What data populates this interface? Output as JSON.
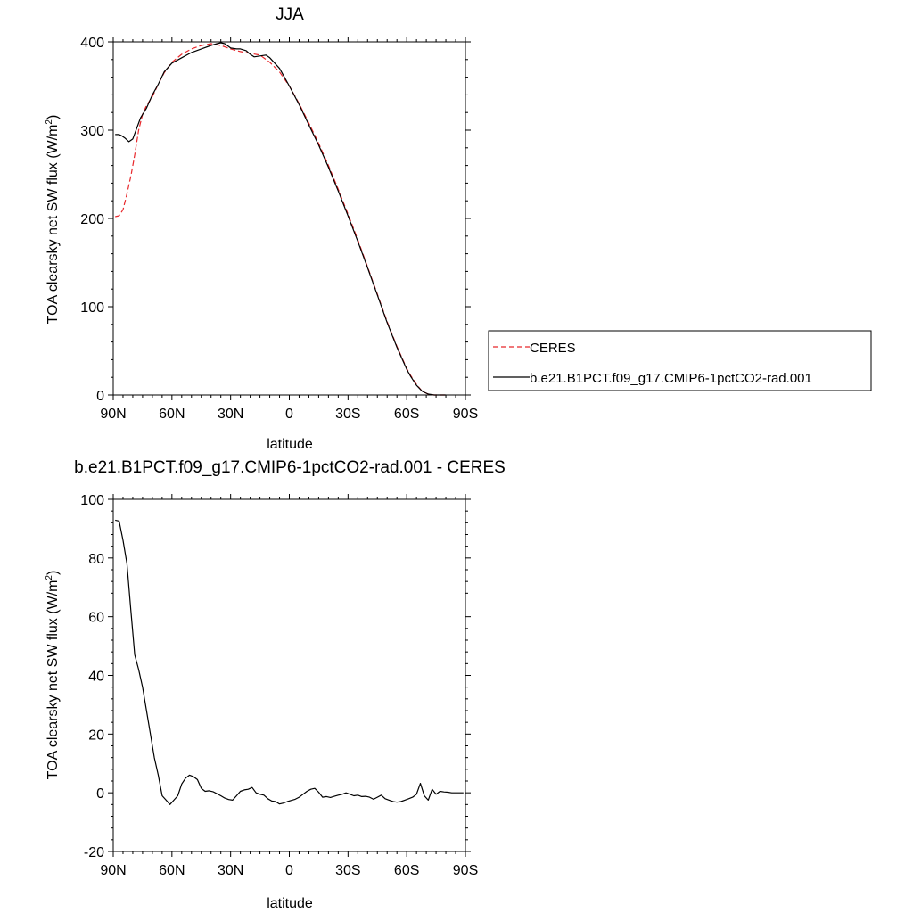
{
  "chart_data": [
    {
      "type": "line",
      "title": "JJA",
      "xlabel": "latitude",
      "ylabel_prefix": "TOA clearsky net SW flux (W/m",
      "ylabel_sup": "2",
      "ylabel_suffix": ")",
      "xlim": [
        90,
        -90
      ],
      "ylim": [
        0,
        400
      ],
      "xticks": [
        90,
        60,
        30,
        0,
        -30,
        -60,
        -90
      ],
      "xtick_labels": [
        "90N",
        "60N",
        "30N",
        "0",
        "30S",
        "60S",
        "90S"
      ],
      "yticks": [
        0,
        100,
        200,
        300,
        400
      ],
      "ytick_labels": [
        "0",
        "100",
        "200",
        "300",
        "400"
      ],
      "grid": false,
      "legend_position": "right",
      "series": [
        {
          "name": "CERES",
          "color": "#e8272b",
          "dash": "dashed",
          "x": [
            89,
            87,
            85,
            83,
            81,
            79,
            77,
            75,
            73,
            70,
            67,
            64,
            60,
            55,
            50,
            45,
            40,
            35,
            30,
            25,
            20,
            15,
            10,
            5,
            0,
            -5,
            -10,
            -15,
            -20,
            -25,
            -30,
            -35,
            -40,
            -45,
            -50,
            -55,
            -60,
            -62,
            -65,
            -68,
            -71,
            -74,
            -77,
            -80
          ],
          "y": [
            202,
            203,
            210,
            228,
            248,
            272,
            300,
            318,
            328,
            338,
            352,
            365,
            377,
            386,
            392,
            396,
            398,
            396,
            392,
            389,
            387,
            385,
            377,
            366,
            350,
            330,
            308,
            285,
            260,
            233,
            205,
            176,
            145,
            114,
            83,
            55,
            30,
            22,
            12,
            4,
            1,
            0,
            0,
            0
          ]
        },
        {
          "name": "b.e21.B1PCT.f09_g17.CMIP6-1pctCO2-rad.001",
          "color": "#000000",
          "dash": "solid",
          "x": [
            89,
            87,
            86,
            84,
            82,
            80,
            78,
            76,
            73,
            70,
            67,
            64,
            60,
            55,
            50,
            45,
            40,
            37,
            35,
            33,
            30,
            27,
            25,
            22,
            20,
            18,
            15,
            12,
            10,
            5,
            0,
            -5,
            -10,
            -15,
            -20,
            -25,
            -30,
            -35,
            -40,
            -45,
            -50,
            -55,
            -60,
            -62,
            -65,
            -68,
            -71,
            -74,
            -77,
            -80
          ],
          "y": [
            295,
            295,
            294,
            291,
            287,
            290,
            302,
            314,
            325,
            340,
            352,
            366,
            376,
            382,
            388,
            392,
            396,
            398,
            399,
            398,
            393,
            392,
            392,
            390,
            386,
            383,
            384,
            385,
            382,
            370,
            350,
            329,
            306,
            283,
            258,
            231,
            203,
            174,
            144,
            113,
            82,
            54,
            29,
            21,
            11,
            4,
            1,
            0,
            0,
            0
          ]
        }
      ]
    },
    {
      "type": "line",
      "title": "b.e21.B1PCT.f09_g17.CMIP6-1pctCO2-rad.001 - CERES",
      "xlabel": "latitude",
      "ylabel_prefix": "TOA clearsky net SW flux (W/m",
      "ylabel_sup": "2",
      "ylabel_suffix": ")",
      "xlim": [
        90,
        -90
      ],
      "ylim": [
        -20,
        100
      ],
      "xticks": [
        90,
        60,
        30,
        0,
        -30,
        -60,
        -90
      ],
      "xtick_labels": [
        "90N",
        "60N",
        "30N",
        "0",
        "30S",
        "60S",
        "90S"
      ],
      "yticks": [
        -20,
        0,
        20,
        40,
        60,
        80,
        100
      ],
      "ytick_labels": [
        "-20",
        "0",
        "20",
        "40",
        "60",
        "80",
        "100"
      ],
      "grid": false,
      "series": [
        {
          "color": "#000000",
          "dash": "solid",
          "x": [
            89,
            87,
            85,
            83,
            81,
            79,
            77,
            75,
            73,
            71,
            69,
            67,
            65,
            63,
            61,
            59,
            57,
            55,
            53,
            51,
            49,
            47,
            45,
            43,
            41,
            39,
            37,
            35,
            33,
            31,
            29,
            27,
            25,
            23,
            21,
            19,
            17,
            15,
            13,
            11,
            9,
            7,
            5,
            3,
            1,
            -1,
            -3,
            -5,
            -7,
            -9,
            -11,
            -13,
            -15,
            -17,
            -19,
            -21,
            -23,
            -25,
            -27,
            -29,
            -31,
            -33,
            -35,
            -37,
            -39,
            -41,
            -43,
            -45,
            -47,
            -49,
            -51,
            -53,
            -55,
            -57,
            -59,
            -61,
            -63,
            -65,
            -67,
            -69,
            -71,
            -73,
            -75,
            -77,
            -79,
            -81,
            -83,
            -85,
            -87,
            -89
          ],
          "y": [
            92.9,
            92.6,
            86,
            78,
            62,
            47,
            42,
            36,
            28,
            20,
            12,
            6,
            -1,
            -2.5,
            -4,
            -2.5,
            -1,
            3,
            5,
            6,
            5.5,
            4.5,
            1.5,
            0.5,
            0.7,
            0.4,
            -0.3,
            -1,
            -1.8,
            -2.3,
            -2.5,
            -1,
            0.5,
            1,
            1.2,
            1.8,
            0,
            -0.5,
            -0.8,
            -2,
            -2.8,
            -3,
            -3.8,
            -3.5,
            -3,
            -2.6,
            -2.2,
            -1.5,
            -0.5,
            0.5,
            1.2,
            1.5,
            0.2,
            -1.5,
            -1.3,
            -1.6,
            -1.2,
            -0.8,
            -0.5,
            0,
            -0.5,
            -1,
            -0.8,
            -1.3,
            -1.2,
            -1.5,
            -2.2,
            -1.5,
            -0.8,
            -2,
            -2.5,
            -3,
            -3.2,
            -3,
            -2.5,
            -2,
            -1.5,
            -0.5,
            3.2,
            -1,
            -2.5,
            1.2,
            -0.5,
            0.5,
            0.3,
            0.2,
            0,
            0,
            0,
            0
          ]
        }
      ]
    }
  ]
}
